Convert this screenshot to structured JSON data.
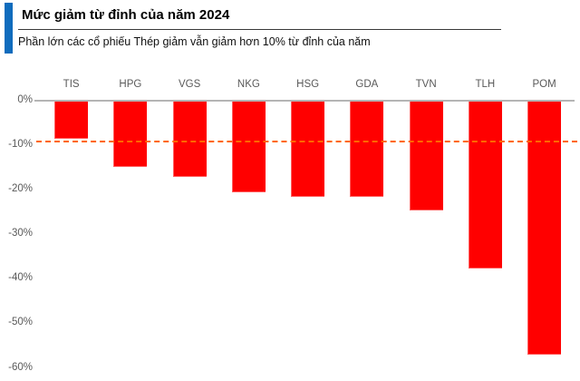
{
  "chart_data": {
    "type": "bar",
    "title": "Mức giảm từ đỉnh của năm 2024",
    "subtitle": "Phần lớn các cổ phiếu Thép giảm vẫn giảm hơn 10% từ đỉnh của năm",
    "categories": [
      "TIS",
      "HPG",
      "VGS",
      "NKG",
      "HSG",
      "GDA",
      "TVN",
      "TLH",
      "POM"
    ],
    "values": [
      -8.7,
      -15.0,
      -17.1,
      -20.7,
      -21.7,
      -21.7,
      -24.8,
      -37.8,
      -57.1
    ],
    "unit": "%",
    "xlabel": "",
    "ylabel": "",
    "ylim": [
      -60,
      0
    ],
    "ytick_labels": [
      "0%",
      "-10%",
      "-20%",
      "-30%",
      "-40%",
      "-50%",
      "-60%"
    ],
    "grid": "off",
    "legend": "none",
    "reference_line": {
      "value": -9.2,
      "style": "dashed",
      "color": "#ff6600"
    },
    "colors": {
      "bar": "#ff0000",
      "reference": "#ff6600",
      "accent_blue": "#0f6cbd",
      "axis_text": "#595959",
      "zero_line": "#b5b5b5",
      "divider": "#3a3a3a"
    }
  }
}
